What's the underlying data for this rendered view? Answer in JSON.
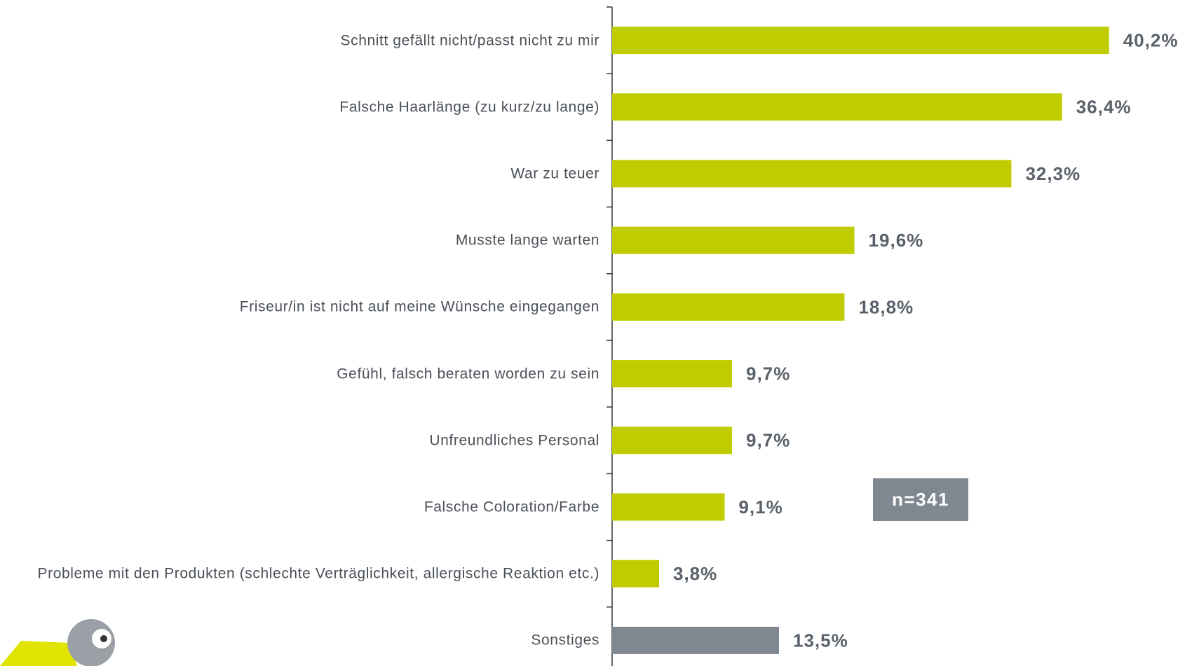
{
  "chart_data": {
    "type": "bar",
    "orientation": "horizontal",
    "categories": [
      "Schnitt gefällt nicht/passt nicht zu mir",
      "Falsche Haarlänge (zu kurz/zu lange)",
      "War zu teuer",
      "Musste lange warten",
      "Friseur/in ist nicht auf meine Wünsche eingegangen",
      "Gefühl, falsch beraten worden zu sein",
      "Unfreundliches Personal",
      "Falsche Coloration/Farbe",
      "Probleme mit den Produkten (schlechte Verträglichkeit, allergische Reaktion etc.)",
      "Sonstiges"
    ],
    "values": [
      40.2,
      36.4,
      32.3,
      19.6,
      18.8,
      9.7,
      9.7,
      9.1,
      3.8,
      13.5
    ],
    "value_labels": [
      "40,2%",
      "36,4%",
      "32,3%",
      "19,6%",
      "18,8%",
      "9,7%",
      "9,7%",
      "9,1%",
      "3,8%",
      "13,5%"
    ],
    "colors": [
      "#bfcd00",
      "#bfcd00",
      "#bfcd00",
      "#bfcd00",
      "#bfcd00",
      "#bfcd00",
      "#bfcd00",
      "#bfcd00",
      "#bfcd00",
      "#7f8890"
    ],
    "annotation": "n=341"
  }
}
